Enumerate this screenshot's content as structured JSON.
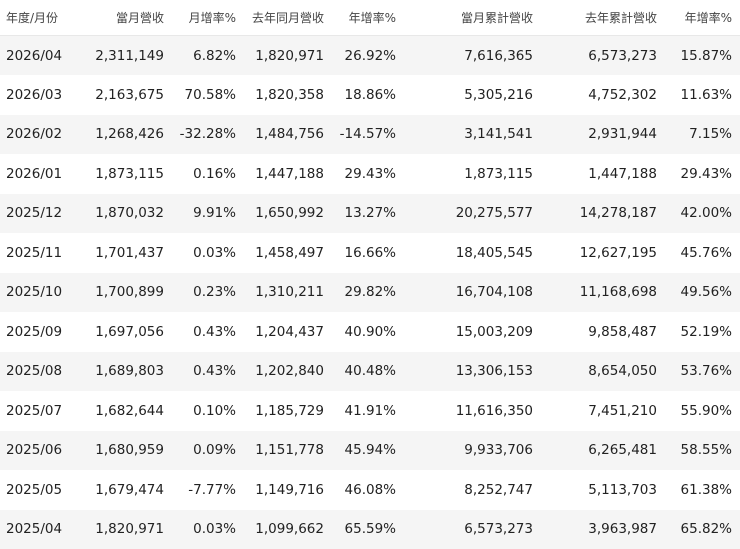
{
  "table": {
    "headers": [
      "年度/月份",
      "當月營收",
      "月增率%",
      "去年同月營收",
      "年增率%",
      "當月累計營收",
      "去年累計營收",
      "年增率%"
    ],
    "rows": [
      [
        "2026/04",
        "2,311,149",
        "6.82%",
        "1,820,971",
        "26.92%",
        "7,616,365",
        "6,573,273",
        "15.87%"
      ],
      [
        "2026/03",
        "2,163,675",
        "70.58%",
        "1,820,358",
        "18.86%",
        "5,305,216",
        "4,752,302",
        "11.63%"
      ],
      [
        "2026/02",
        "1,268,426",
        "-32.28%",
        "1,484,756",
        "-14.57%",
        "3,141,541",
        "2,931,944",
        "7.15%"
      ],
      [
        "2026/01",
        "1,873,115",
        "0.16%",
        "1,447,188",
        "29.43%",
        "1,873,115",
        "1,447,188",
        "29.43%"
      ],
      [
        "2025/12",
        "1,870,032",
        "9.91%",
        "1,650,992",
        "13.27%",
        "20,275,577",
        "14,278,187",
        "42.00%"
      ],
      [
        "2025/11",
        "1,701,437",
        "0.03%",
        "1,458,497",
        "16.66%",
        "18,405,545",
        "12,627,195",
        "45.76%"
      ],
      [
        "2025/10",
        "1,700,899",
        "0.23%",
        "1,310,211",
        "29.82%",
        "16,704,108",
        "11,168,698",
        "49.56%"
      ],
      [
        "2025/09",
        "1,697,056",
        "0.43%",
        "1,204,437",
        "40.90%",
        "15,003,209",
        "9,858,487",
        "52.19%"
      ],
      [
        "2025/08",
        "1,689,803",
        "0.43%",
        "1,202,840",
        "40.48%",
        "13,306,153",
        "8,654,050",
        "53.76%"
      ],
      [
        "2025/07",
        "1,682,644",
        "0.10%",
        "1,185,729",
        "41.91%",
        "11,616,350",
        "7,451,210",
        "55.90%"
      ],
      [
        "2025/06",
        "1,680,959",
        "0.09%",
        "1,151,778",
        "45.94%",
        "9,933,706",
        "6,265,481",
        "58.55%"
      ],
      [
        "2025/05",
        "1,679,474",
        "-7.77%",
        "1,149,716",
        "46.08%",
        "8,252,747",
        "5,113,703",
        "61.38%"
      ],
      [
        "2025/04",
        "1,820,971",
        "0.03%",
        "1,099,662",
        "65.59%",
        "6,573,273",
        "3,963,987",
        "65.82%"
      ]
    ]
  }
}
